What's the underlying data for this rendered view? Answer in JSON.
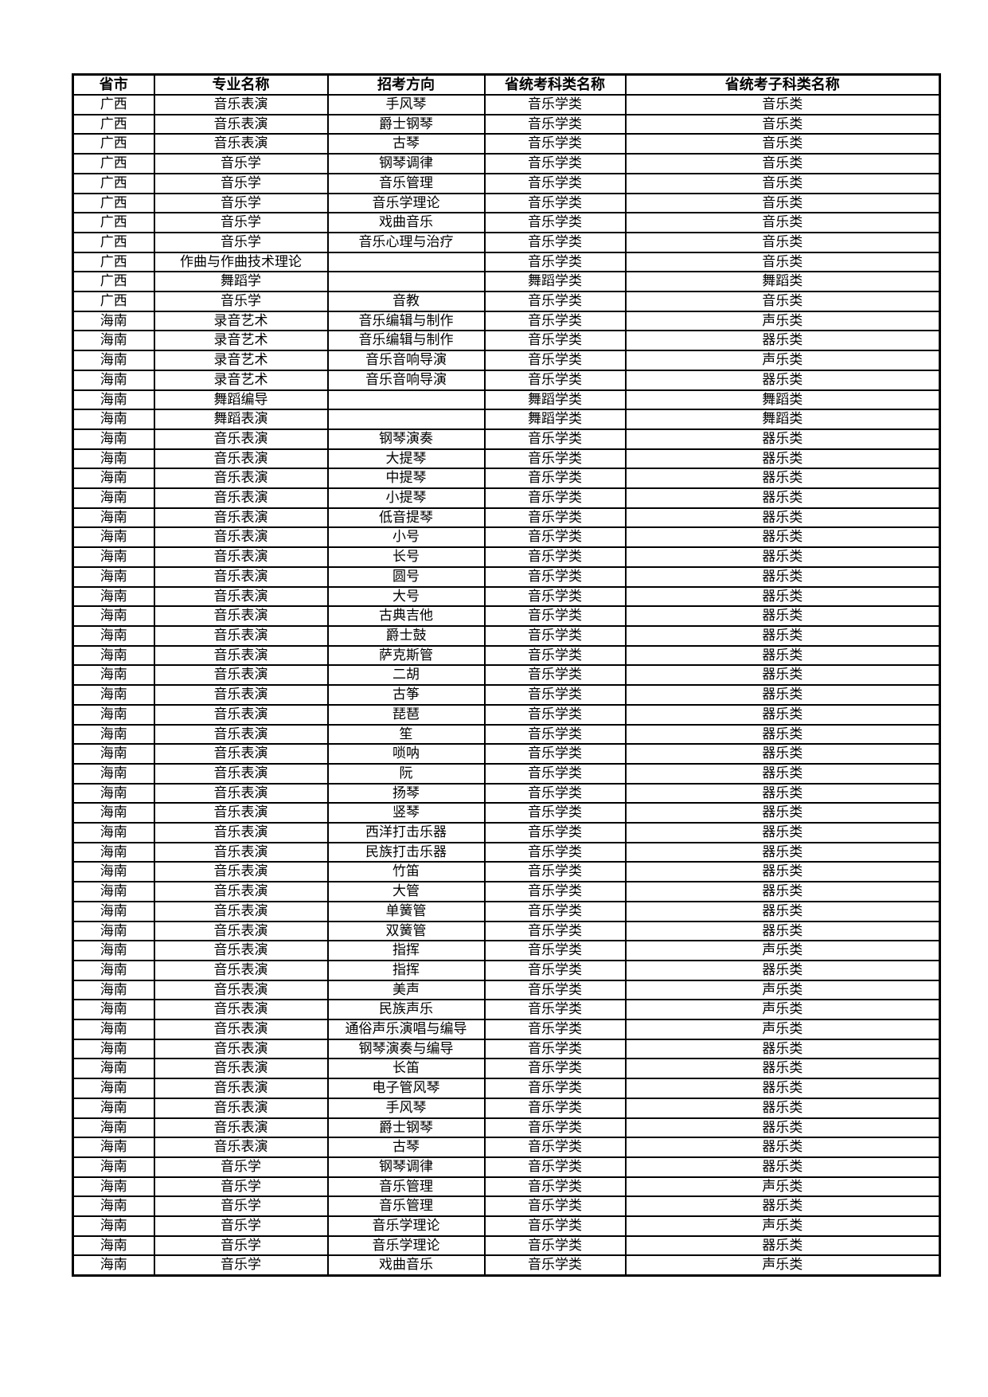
{
  "page": {
    "background_color": "#ffffff",
    "text_color": "#000000",
    "border_color": "#000000"
  },
  "table": {
    "columns": [
      "省市",
      "专业名称",
      "招考方向",
      "省统考科类名称",
      "省统考子科类名称"
    ],
    "rows": [
      [
        "广西",
        "音乐表演",
        "手风琴",
        "音乐学类",
        "音乐类"
      ],
      [
        "广西",
        "音乐表演",
        "爵士钢琴",
        "音乐学类",
        "音乐类"
      ],
      [
        "广西",
        "音乐表演",
        "古琴",
        "音乐学类",
        "音乐类"
      ],
      [
        "广西",
        "音乐学",
        "钢琴调律",
        "音乐学类",
        "音乐类"
      ],
      [
        "广西",
        "音乐学",
        "音乐管理",
        "音乐学类",
        "音乐类"
      ],
      [
        "广西",
        "音乐学",
        "音乐学理论",
        "音乐学类",
        "音乐类"
      ],
      [
        "广西",
        "音乐学",
        "戏曲音乐",
        "音乐学类",
        "音乐类"
      ],
      [
        "广西",
        "音乐学",
        "音乐心理与治疗",
        "音乐学类",
        "音乐类"
      ],
      [
        "广西",
        "作曲与作曲技术理论",
        "",
        "音乐学类",
        "音乐类"
      ],
      [
        "广西",
        "舞蹈学",
        "",
        "舞蹈学类",
        "舞蹈类"
      ],
      [
        "广西",
        "音乐学",
        "音教",
        "音乐学类",
        "音乐类"
      ],
      [
        "海南",
        "录音艺术",
        "音乐编辑与制作",
        "音乐学类",
        "声乐类"
      ],
      [
        "海南",
        "录音艺术",
        "音乐编辑与制作",
        "音乐学类",
        "器乐类"
      ],
      [
        "海南",
        "录音艺术",
        "音乐音响导演",
        "音乐学类",
        "声乐类"
      ],
      [
        "海南",
        "录音艺术",
        "音乐音响导演",
        "音乐学类",
        "器乐类"
      ],
      [
        "海南",
        "舞蹈编导",
        "",
        "舞蹈学类",
        "舞蹈类"
      ],
      [
        "海南",
        "舞蹈表演",
        "",
        "舞蹈学类",
        "舞蹈类"
      ],
      [
        "海南",
        "音乐表演",
        "钢琴演奏",
        "音乐学类",
        "器乐类"
      ],
      [
        "海南",
        "音乐表演",
        "大提琴",
        "音乐学类",
        "器乐类"
      ],
      [
        "海南",
        "音乐表演",
        "中提琴",
        "音乐学类",
        "器乐类"
      ],
      [
        "海南",
        "音乐表演",
        "小提琴",
        "音乐学类",
        "器乐类"
      ],
      [
        "海南",
        "音乐表演",
        "低音提琴",
        "音乐学类",
        "器乐类"
      ],
      [
        "海南",
        "音乐表演",
        "小号",
        "音乐学类",
        "器乐类"
      ],
      [
        "海南",
        "音乐表演",
        "长号",
        "音乐学类",
        "器乐类"
      ],
      [
        "海南",
        "音乐表演",
        "圆号",
        "音乐学类",
        "器乐类"
      ],
      [
        "海南",
        "音乐表演",
        "大号",
        "音乐学类",
        "器乐类"
      ],
      [
        "海南",
        "音乐表演",
        "古典吉他",
        "音乐学类",
        "器乐类"
      ],
      [
        "海南",
        "音乐表演",
        "爵士鼓",
        "音乐学类",
        "器乐类"
      ],
      [
        "海南",
        "音乐表演",
        "萨克斯管",
        "音乐学类",
        "器乐类"
      ],
      [
        "海南",
        "音乐表演",
        "二胡",
        "音乐学类",
        "器乐类"
      ],
      [
        "海南",
        "音乐表演",
        "古筝",
        "音乐学类",
        "器乐类"
      ],
      [
        "海南",
        "音乐表演",
        "琵琶",
        "音乐学类",
        "器乐类"
      ],
      [
        "海南",
        "音乐表演",
        "笙",
        "音乐学类",
        "器乐类"
      ],
      [
        "海南",
        "音乐表演",
        "唢呐",
        "音乐学类",
        "器乐类"
      ],
      [
        "海南",
        "音乐表演",
        "阮",
        "音乐学类",
        "器乐类"
      ],
      [
        "海南",
        "音乐表演",
        "扬琴",
        "音乐学类",
        "器乐类"
      ],
      [
        "海南",
        "音乐表演",
        "竖琴",
        "音乐学类",
        "器乐类"
      ],
      [
        "海南",
        "音乐表演",
        "西洋打击乐器",
        "音乐学类",
        "器乐类"
      ],
      [
        "海南",
        "音乐表演",
        "民族打击乐器",
        "音乐学类",
        "器乐类"
      ],
      [
        "海南",
        "音乐表演",
        "竹笛",
        "音乐学类",
        "器乐类"
      ],
      [
        "海南",
        "音乐表演",
        "大管",
        "音乐学类",
        "器乐类"
      ],
      [
        "海南",
        "音乐表演",
        "单簧管",
        "音乐学类",
        "器乐类"
      ],
      [
        "海南",
        "音乐表演",
        "双簧管",
        "音乐学类",
        "器乐类"
      ],
      [
        "海南",
        "音乐表演",
        "指挥",
        "音乐学类",
        "声乐类"
      ],
      [
        "海南",
        "音乐表演",
        "指挥",
        "音乐学类",
        "器乐类"
      ],
      [
        "海南",
        "音乐表演",
        "美声",
        "音乐学类",
        "声乐类"
      ],
      [
        "海南",
        "音乐表演",
        "民族声乐",
        "音乐学类",
        "声乐类"
      ],
      [
        "海南",
        "音乐表演",
        "通俗声乐演唱与编导",
        "音乐学类",
        "声乐类"
      ],
      [
        "海南",
        "音乐表演",
        "钢琴演奏与编导",
        "音乐学类",
        "器乐类"
      ],
      [
        "海南",
        "音乐表演",
        "长笛",
        "音乐学类",
        "器乐类"
      ],
      [
        "海南",
        "音乐表演",
        "电子管风琴",
        "音乐学类",
        "器乐类"
      ],
      [
        "海南",
        "音乐表演",
        "手风琴",
        "音乐学类",
        "器乐类"
      ],
      [
        "海南",
        "音乐表演",
        "爵士钢琴",
        "音乐学类",
        "器乐类"
      ],
      [
        "海南",
        "音乐表演",
        "古琴",
        "音乐学类",
        "器乐类"
      ],
      [
        "海南",
        "音乐学",
        "钢琴调律",
        "音乐学类",
        "器乐类"
      ],
      [
        "海南",
        "音乐学",
        "音乐管理",
        "音乐学类",
        "声乐类"
      ],
      [
        "海南",
        "音乐学",
        "音乐管理",
        "音乐学类",
        "器乐类"
      ],
      [
        "海南",
        "音乐学",
        "音乐学理论",
        "音乐学类",
        "声乐类"
      ],
      [
        "海南",
        "音乐学",
        "音乐学理论",
        "音乐学类",
        "器乐类"
      ],
      [
        "海南",
        "音乐学",
        "戏曲音乐",
        "音乐学类",
        "声乐类"
      ]
    ]
  }
}
